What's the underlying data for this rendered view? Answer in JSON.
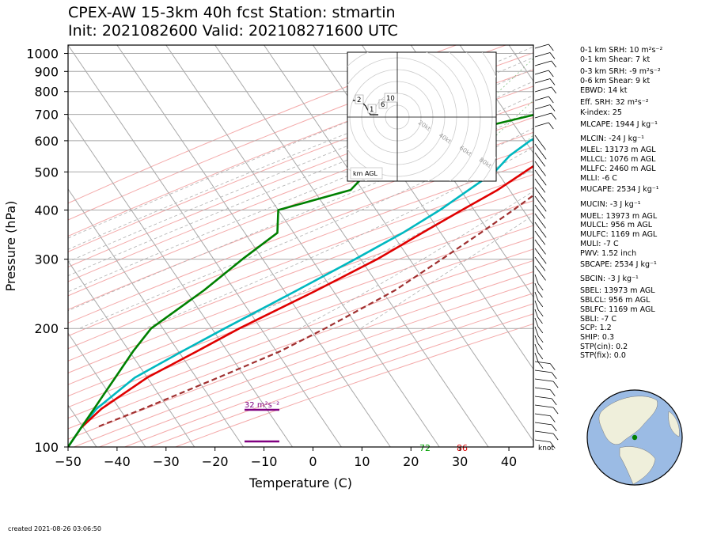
{
  "title_line1": "CPEX-AW 15-3km  40h fcst  Station: stmartin",
  "title_line2": "Init: 2021082600  Valid: 202108271600 UTC",
  "chart_data": {
    "type": "line",
    "xlabel": "Temperature (C)",
    "ylabel": "Pressure (hPa)",
    "xlim": [
      -50,
      45
    ],
    "ylim": [
      1050,
      100
    ],
    "y_scale": "log",
    "x_ticks": [
      -50,
      -40,
      -30,
      -20,
      -10,
      0,
      10,
      20,
      30,
      40
    ],
    "y_ticks": [
      100,
      200,
      300,
      400,
      500,
      600,
      700,
      800,
      900,
      1000
    ],
    "series": [
      {
        "name": "temperature",
        "color": "#e00000",
        "p": [
          1010,
          1000,
          975,
          950,
          925,
          900,
          875,
          850,
          800,
          750,
          700,
          650,
          600,
          550,
          500,
          450,
          400,
          350,
          300,
          250,
          200,
          175,
          150,
          125,
          112
        ],
        "t": [
          30.1,
          28.4,
          26.3,
          24.8,
          23.6,
          22.3,
          22.3,
          22.3,
          20.2,
          17.5,
          15.5,
          13.3,
          10.9,
          7.8,
          5.0,
          2.0,
          -2.5,
          -7.4,
          -13.0,
          -21.0,
          -31.5,
          -37.0,
          -43.5,
          -48.5,
          -50.0
        ]
      },
      {
        "name": "dewpoint",
        "color": "#00b8c0",
        "p": [
          1000,
          975,
          950,
          925,
          900,
          875,
          850,
          825,
          800,
          775,
          750,
          700,
          650,
          600,
          550,
          500,
          450,
          400,
          350,
          300,
          250,
          200,
          175,
          150,
          125,
          112,
          100
        ],
        "t": [
          24.7,
          23.7,
          23.0,
          22.0,
          21.5,
          21.2,
          20.4,
          17.5,
          14.0,
          12.5,
          11.5,
          9.3,
          5.4,
          1.8,
          -0.3,
          -1.1,
          -3.9,
          -7.0,
          -11.4,
          -17.5,
          -25.0,
          -34.5,
          -40.0,
          -46.0,
          -49.5,
          -50.0,
          -50.0
        ]
      },
      {
        "name": "wet-bulb",
        "color": "#008000",
        "p": [
          1000,
          975,
          950,
          925,
          900,
          875,
          850,
          825,
          800,
          775,
          750,
          700,
          650,
          600,
          550,
          500,
          450,
          400,
          350,
          300,
          250,
          200,
          175,
          150,
          125,
          112,
          100
        ],
        "t": [
          23.0,
          22.6,
          22.5,
          21.3,
          20.4,
          20.4,
          13.0,
          12.0,
          4.3,
          3.7,
          2.5,
          -0.7,
          -9.7,
          -23.0,
          -24.0,
          -27.0,
          -28.0,
          -40.0,
          -37.0,
          -40.5,
          -44.0,
          -49.5,
          -50.0,
          -50.0,
          -50.0,
          -50.0,
          -50.0
        ]
      },
      {
        "name": "parcel",
        "color": "#a03030",
        "p": [
          1010,
          975,
          950,
          925,
          900,
          875,
          850,
          825,
          800,
          750,
          700,
          650,
          600,
          550,
          500,
          450,
          400,
          350,
          300,
          250,
          200,
          175,
          150,
          125,
          112
        ],
        "t": [
          33.3,
          27.3,
          25.4,
          24.2,
          23.8,
          23.3,
          22.7,
          22.3,
          21.8,
          20.7,
          19.5,
          18.0,
          16.5,
          14.8,
          13.0,
          10.8,
          8.0,
          4.5,
          0.2,
          -5.0,
          -14.0,
          -20.0,
          -29.0,
          -40.0,
          -47.0
        ]
      }
    ],
    "surface_labels": {
      "dewpoint": "72",
      "temperature": "86"
    },
    "srh_annotation": "32 m²s⁻²",
    "units_label": "knot",
    "hodograph": {
      "label": "km AGL",
      "ring_labels": [
        "20kt",
        "40kt",
        "60kt",
        "80kt"
      ],
      "height_labels": [
        "2",
        "1",
        "6",
        "10"
      ]
    }
  },
  "indices": [
    "0-1 km SRH: 10 m²s⁻²",
    "0-1 km Shear: 7 kt",
    "0-3 km SRH: -9 m²s⁻²",
    "0-6 km Shear: 9 kt",
    "EBWD: 14 kt",
    "Eff. SRH: 32 m²s⁻²",
    "K-index: 25",
    "MLCAPE: 1944 J kg⁻¹",
    "MLCIN: -24 J kg⁻¹",
    "MLEL: 13173 m AGL",
    "MLLCL: 1076 m AGL",
    "MLLFC: 2460 m AGL",
    "MLLI: -6 C",
    "MUCAPE: 2534 J kg⁻¹",
    "MUCIN: -3 J kg⁻¹",
    "MUEL: 13973 m AGL",
    "MULCL: 956 m AGL",
    "MULFC: 1169 m AGL",
    "MULI: -7 C",
    "PWV: 1.52 inch",
    "SBCAPE: 2534 J kg⁻¹",
    "SBCIN: -3 J kg⁻¹",
    "SBEL: 13973 m AGL",
    "SBLCL: 956 m AGL",
    "SBLFC: 1169 m AGL",
    "SBLI: -7 C",
    "SCP: 1.2",
    "SHIP: 0.3",
    "STP(cin): 0.2",
    "STP(fix): 0.0"
  ],
  "created": "created 2021-08-26 03:06:50"
}
